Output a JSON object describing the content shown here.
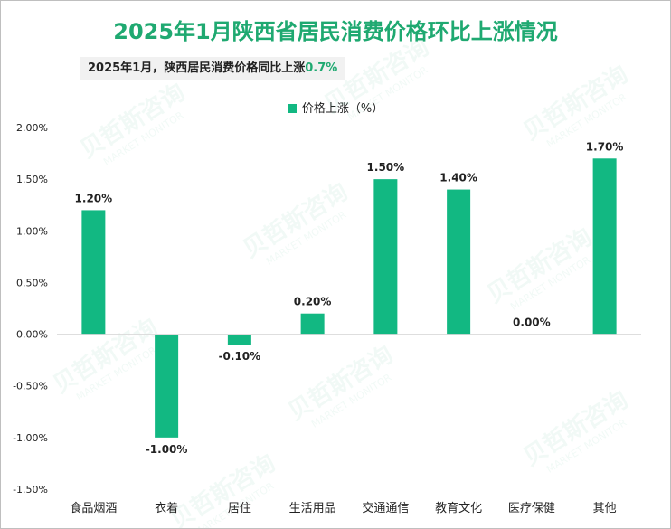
{
  "chart_data": {
    "type": "bar",
    "title": "2025年1月陕西省居民消费价格环比上涨情况",
    "subtitle": "2025年1月，陕西居民消费价格同比上涨",
    "subtitle_highlight": "0.7%",
    "legend": [
      "价格上涨（%）"
    ],
    "legend_position": "top-center",
    "categories": [
      "食品烟酒",
      "衣着",
      "居住",
      "生活用品",
      "交通通信",
      "教育文化",
      "医疗保健",
      "其他"
    ],
    "series": [
      {
        "name": "价格上涨（%）",
        "values": [
          1.2,
          -1.0,
          -0.1,
          0.2,
          1.5,
          1.4,
          0.0,
          1.7
        ]
      }
    ],
    "data_labels": [
      "1.20%",
      "-1.00%",
      "-0.10%",
      "0.20%",
      "1.50%",
      "1.40%",
      "0.00%",
      "1.70%"
    ],
    "yticks": [
      2.0,
      1.5,
      1.0,
      0.5,
      0.0,
      -0.5,
      -1.0,
      -1.5
    ],
    "ytick_labels": [
      "2.00%",
      "1.50%",
      "1.00%",
      "0.50%",
      "0.00%",
      "-0.50%",
      "-1.00%",
      "-1.50%"
    ],
    "ylim": [
      -1.5,
      2.0
    ],
    "xlabel": "",
    "ylabel": "",
    "grid": false
  },
  "colors": {
    "bar": "#12b882",
    "title": "#1fa971",
    "axis": "#d9d9d9",
    "text": "#222222"
  },
  "watermark": {
    "brand": "贝哲斯咨询",
    "sub": "MARKET MONITOR"
  }
}
